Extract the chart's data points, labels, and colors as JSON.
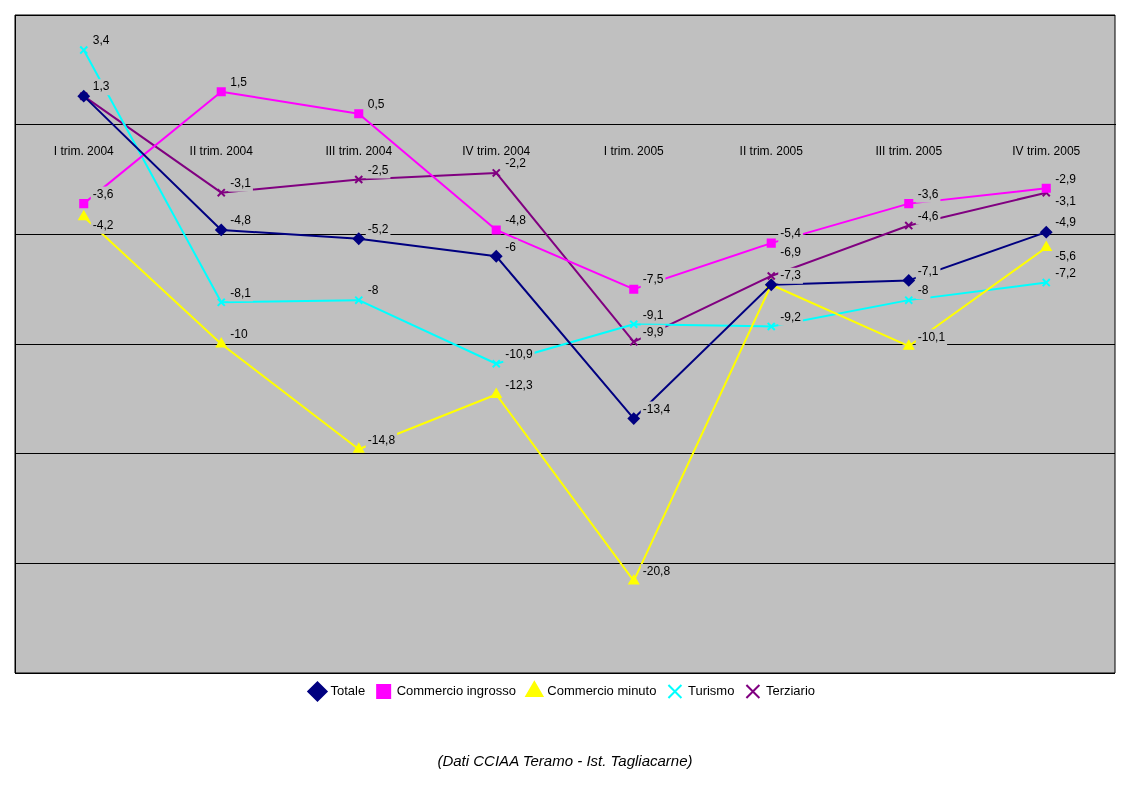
{
  "chart_data": {
    "type": "line",
    "categories": [
      "I trim. 2004",
      "II trim. 2004",
      "III trim. 2004",
      "IV trim. 2004",
      "I trim. 2005",
      "II trim. 2005",
      "III trim. 2005",
      "IV trim. 2005"
    ],
    "series": [
      {
        "name": "Totale",
        "color": "#000080",
        "marker": "diamond",
        "values": [
          1.3,
          -4.8,
          -5.2,
          -6,
          -13.4,
          -7.3,
          -7.1,
          -4.9
        ],
        "value_labels": [
          "1,3",
          "-4,8",
          "-5,2",
          "-6",
          "-13,4",
          "-7,3",
          "-7,1",
          "-4,9"
        ]
      },
      {
        "name": "Commercio ingrosso",
        "color": "#ff00ff",
        "marker": "square",
        "values": [
          -3.6,
          1.5,
          0.5,
          -4.8,
          -7.5,
          -5.4,
          -3.6,
          -2.9
        ],
        "value_labels": [
          "-3,6",
          "1,5",
          "0,5",
          "-4,8",
          "-7,5",
          "-5,4",
          "-3,6",
          "-2,9"
        ]
      },
      {
        "name": "Commercio minuto",
        "color": "#ffff00",
        "marker": "triangle",
        "values": [
          -4.2,
          -10,
          -14.8,
          -12.3,
          -20.8,
          -7.3,
          -10.1,
          -5.6
        ],
        "value_labels": [
          "-4,2",
          "-10",
          "-14,8",
          "-12,3",
          "-20,8",
          null,
          "-10,1",
          "-5,6"
        ]
      },
      {
        "name": "Turismo",
        "color": "#00ffff",
        "marker": "cross",
        "values": [
          3.4,
          -8.1,
          -8,
          -10.9,
          -9.1,
          -9.2,
          -8,
          -7.2
        ],
        "value_labels": [
          "3,4",
          "-8,1",
          "-8",
          "-10,9",
          "-9,1",
          "-9,2",
          "-8",
          "-7,2"
        ]
      },
      {
        "name": "Terziario",
        "color": "#800080",
        "marker": "cross",
        "values": [
          1.3,
          -3.1,
          -2.5,
          -2.2,
          -9.9,
          -6.9,
          -4.6,
          -3.1
        ],
        "value_labels": [
          null,
          "-3,1",
          "-2,5",
          "-2,2",
          "-9,9",
          "-6,9",
          "-4,6",
          "-3,1"
        ]
      }
    ],
    "ylim": [
      -25,
      5
    ],
    "yticks": [
      {
        "value": -25,
        "label": null
      },
      {
        "value": -20,
        "label": null
      },
      {
        "value": -15,
        "label": null
      },
      {
        "value": -10,
        "label": null
      },
      {
        "value": -5,
        "label": null
      },
      {
        "value": 0,
        "label": null
      },
      {
        "value": 5,
        "label": null
      }
    ],
    "tick_labels": "x",
    "grid": "y",
    "legend": "bottom",
    "annotations": [
      "(Dati CCIAA Teramo - Ist. Tagliacarne)"
    ]
  }
}
